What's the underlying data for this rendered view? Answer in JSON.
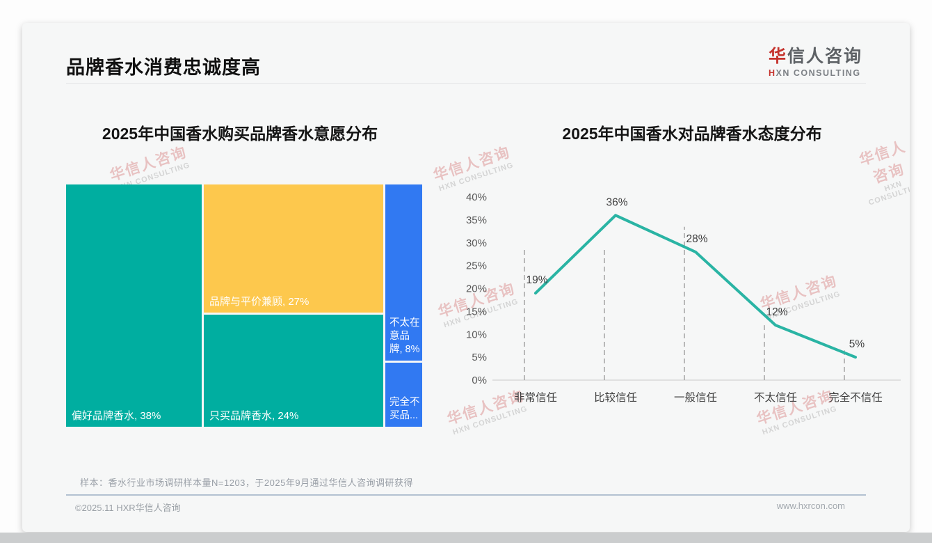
{
  "page": {
    "title": "品牌香水消费忠诚度高"
  },
  "logo": {
    "cn_first": "华",
    "cn_rest": "信人咨询",
    "en_first": "H",
    "en_rest": "XN CONSULTING"
  },
  "watermark": {
    "cn": "华信人咨询",
    "en": "HXN CONSULTING"
  },
  "chart_data": [
    {
      "type": "treemap",
      "title": "2025年中国香水购买品牌香水意愿分布",
      "items": [
        {
          "name": "偏好品牌香水",
          "label": "偏好品牌香水, 38%",
          "value": 38,
          "color": "#00AEA0"
        },
        {
          "name": "品牌与平价兼顾",
          "label": "品牌与平价兼顾, 27%",
          "value": 27,
          "color": "#FDC84D"
        },
        {
          "name": "只买品牌香水",
          "label": "只买品牌香水, 24%",
          "value": 24,
          "color": "#00AEA0"
        },
        {
          "name": "不太在意品牌",
          "label": "不太在意品牌, 8%",
          "value": 8,
          "color": "#3179F2"
        },
        {
          "name": "完全不买品牌",
          "label": "完全不买品...",
          "value": 3,
          "color": "#3179F2"
        }
      ]
    },
    {
      "type": "line",
      "title": "2025年中国香水对品牌香水态度分布",
      "categories": [
        "非常信任",
        "比较信任",
        "一般信任",
        "不太信任",
        "完全不信任"
      ],
      "values": [
        19,
        36,
        28,
        12,
        5
      ],
      "point_labels": [
        "19%",
        "36%",
        "28%",
        "12%",
        "5%"
      ],
      "ylim": [
        0,
        40
      ],
      "ytick_step": 5,
      "ytick_labels": [
        "0%",
        "5%",
        "10%",
        "15%",
        "20%",
        "25%",
        "30%",
        "35%",
        "40%"
      ],
      "dropline_tops": [
        28.5,
        28.5,
        33.5,
        12,
        6.5
      ],
      "line_color": "#2AB4A4",
      "axis_color": "#d9d9d9",
      "dropline_color": "#a8a8a8",
      "tick_text_color": "#595959",
      "label_text_color": "#3d3d3d",
      "grid": "off",
      "legend": "none"
    }
  ],
  "footer": {
    "note": "样本：香水行业市场调研样本量N=1203，于2025年9月通过华信人咨询调研获得",
    "copyright": "©2025.11 HXR华信人咨询",
    "website": "www.hxrcon.com"
  }
}
